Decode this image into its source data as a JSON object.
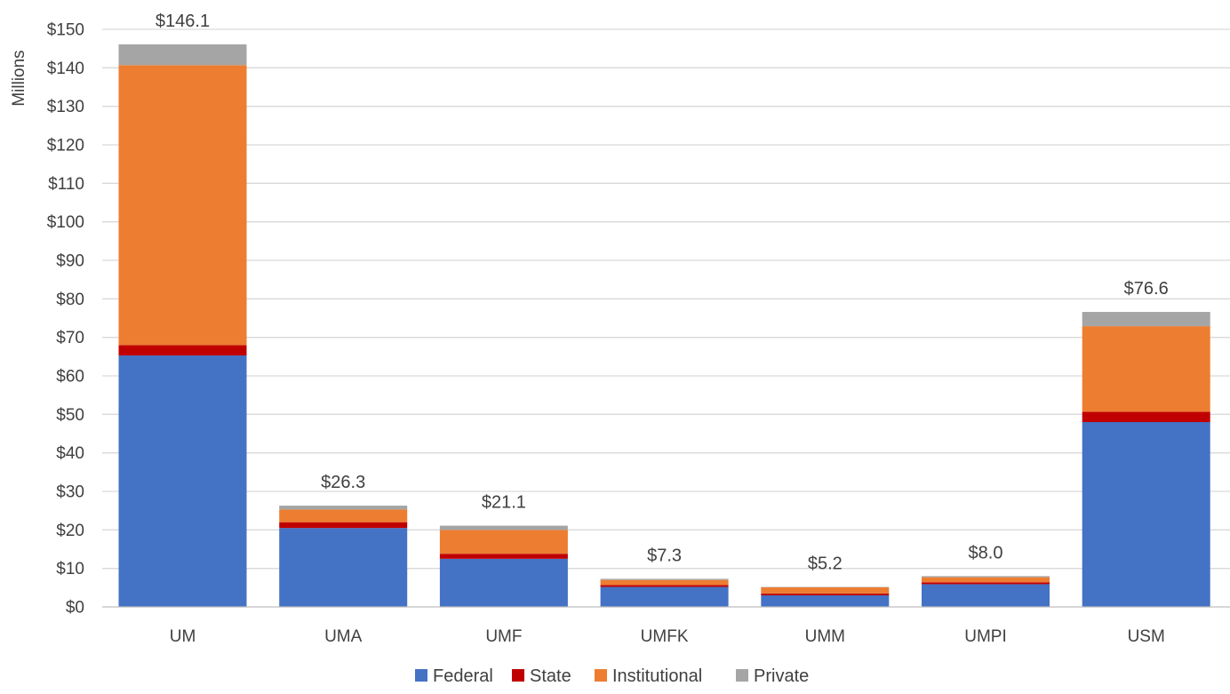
{
  "chart_data": {
    "type": "bar",
    "stacked": true,
    "ylabel": "Millions",
    "ylim": [
      0,
      150
    ],
    "y_ticks": [
      "$0",
      "$10",
      "$20",
      "$30",
      "$40",
      "$50",
      "$60",
      "$70",
      "$80",
      "$90",
      "$100",
      "$110",
      "$120",
      "$130",
      "$140",
      "$150"
    ],
    "grid": true,
    "legend_position": "bottom",
    "categories": [
      "UM",
      "UMA",
      "UMF",
      "UMFK",
      "UMM",
      "UMPI",
      "USM"
    ],
    "totals_labels": [
      "$146.1",
      "$26.3",
      "$21.1",
      "$7.3",
      "$5.2",
      "$8.0",
      "$76.6"
    ],
    "series": [
      {
        "name": "Federal",
        "color": "#4472C4",
        "values": [
          65.3,
          20.5,
          12.5,
          5.2,
          3.0,
          5.9,
          48.0
        ]
      },
      {
        "name": "State",
        "color": "#C00000",
        "values": [
          2.7,
          1.5,
          1.3,
          0.5,
          0.5,
          0.5,
          2.7
        ]
      },
      {
        "name": "Institutional",
        "color": "#ED7D31",
        "values": [
          72.7,
          3.3,
          6.2,
          1.3,
          1.6,
          1.3,
          22.2
        ]
      },
      {
        "name": "Private",
        "color": "#A5A5A5",
        "values": [
          5.4,
          1.0,
          1.1,
          0.3,
          0.1,
          0.3,
          3.7
        ]
      }
    ]
  }
}
